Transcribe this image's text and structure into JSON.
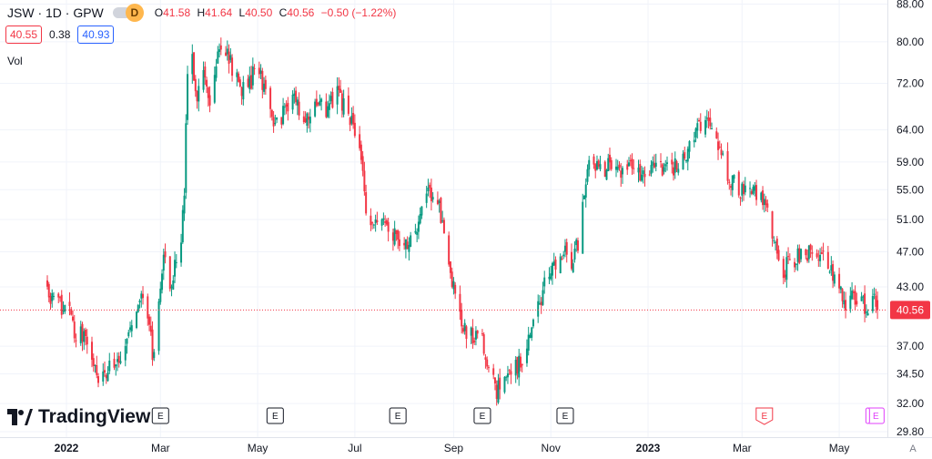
{
  "header": {
    "symbol": "JSW · 1D · GPW",
    "badge": "D",
    "o_label": "O",
    "o_value": "41.58",
    "h_label": "H",
    "h_value": "41.64",
    "l_label": "L",
    "l_value": "40.50",
    "c_label": "C",
    "c_value": "40.56",
    "change": "−0.50 (−1.22%)"
  },
  "quote": {
    "bid": "40.55",
    "spread": "0.38",
    "ask": "40.93"
  },
  "vol_label": "Vol",
  "brand": "TradingView",
  "colors": {
    "up": "#089981",
    "down": "#f23645",
    "grid": "#f0f3fa",
    "axis_text": "#131722",
    "earnings_future": "#f23645",
    "earnings_next": "#e040fb"
  },
  "chart_data": {
    "type": "candlestick",
    "title": "JSW · 1D · GPW",
    "log_scale": true,
    "grid": true,
    "y_ticks": [
      "88.00",
      "80.00",
      "72.00",
      "64.00",
      "59.00",
      "55.00",
      "51.00",
      "47.00",
      "43.00",
      "40.56",
      "37.00",
      "34.50",
      "32.00",
      "29.80"
    ],
    "x_ticks": [
      "2022",
      "Mar",
      "May",
      "Jul",
      "Sep",
      "Nov",
      "2023",
      "Mar",
      "May"
    ],
    "last_price": 40.56,
    "price_path": [
      [
        "2021-12-20",
        42.5
      ],
      [
        "2021-12-27",
        41.0
      ],
      [
        "2022-01-03",
        40.0
      ],
      [
        "2022-01-07",
        37.5
      ],
      [
        "2022-01-12",
        38.5
      ],
      [
        "2022-01-17",
        35.5
      ],
      [
        "2022-01-21",
        33.5
      ],
      [
        "2022-01-26",
        34.5
      ],
      [
        "2022-01-31",
        35.5
      ],
      [
        "2022-02-04",
        36.0
      ],
      [
        "2022-02-09",
        38.0
      ],
      [
        "2022-02-14",
        41.0
      ],
      [
        "2022-02-18",
        42.0
      ],
      [
        "2022-02-22",
        39.0
      ],
      [
        "2022-02-24",
        36.0
      ],
      [
        "2022-02-28",
        40.5
      ],
      [
        "2022-03-03",
        47.0
      ],
      [
        "2022-03-08",
        42.5
      ],
      [
        "2022-03-10",
        45.5
      ],
      [
        "2022-03-14",
        48.0
      ],
      [
        "2022-03-16",
        55.0
      ],
      [
        "2022-03-18",
        72.0
      ],
      [
        "2022-03-21",
        76.0
      ],
      [
        "2022-03-24",
        69.0
      ],
      [
        "2022-03-28",
        73.0
      ],
      [
        "2022-04-01",
        68.0
      ],
      [
        "2022-04-05",
        76.0
      ],
      [
        "2022-04-08",
        78.0
      ],
      [
        "2022-04-12",
        77.0
      ],
      [
        "2022-04-19",
        72.0
      ],
      [
        "2022-04-25",
        70.5
      ],
      [
        "2022-04-29",
        75.0
      ],
      [
        "2022-05-05",
        72.0
      ],
      [
        "2022-05-11",
        64.0
      ],
      [
        "2022-05-17",
        67.0
      ],
      [
        "2022-05-23",
        70.0
      ],
      [
        "2022-05-30",
        66.0
      ],
      [
        "2022-06-06",
        69.0
      ],
      [
        "2022-06-13",
        67.0
      ],
      [
        "2022-06-20",
        70.0
      ],
      [
        "2022-06-27",
        66.0
      ],
      [
        "2022-07-01",
        64.0
      ],
      [
        "2022-07-05",
        60.0
      ],
      [
        "2022-07-08",
        53.0
      ],
      [
        "2022-07-12",
        50.0
      ],
      [
        "2022-07-18",
        51.5
      ],
      [
        "2022-07-25",
        49.5
      ],
      [
        "2022-08-01",
        47.5
      ],
      [
        "2022-08-08",
        50.0
      ],
      [
        "2022-08-12",
        52.5
      ],
      [
        "2022-08-17",
        55.0
      ],
      [
        "2022-08-22",
        53.0
      ],
      [
        "2022-08-26",
        50.0
      ],
      [
        "2022-08-31",
        44.0
      ],
      [
        "2022-09-06",
        39.0
      ],
      [
        "2022-09-12",
        38.0
      ],
      [
        "2022-09-19",
        37.5
      ],
      [
        "2022-09-23",
        35.0
      ],
      [
        "2022-09-28",
        33.0
      ],
      [
        "2022-10-03",
        34.0
      ],
      [
        "2022-10-10",
        35.0
      ],
      [
        "2022-10-17",
        37.0
      ],
      [
        "2022-10-24",
        41.0
      ],
      [
        "2022-10-31",
        44.5
      ],
      [
        "2022-11-07",
        47.0
      ],
      [
        "2022-11-14",
        46.0
      ],
      [
        "2022-11-18",
        48.0
      ],
      [
        "2022-11-22",
        55.0
      ],
      [
        "2022-11-25",
        60.0
      ],
      [
        "2022-12-01",
        58.0
      ],
      [
        "2022-12-08",
        58.5
      ],
      [
        "2022-12-15",
        57.0
      ],
      [
        "2022-12-22",
        58.0
      ],
      [
        "2022-12-29",
        57.0
      ],
      [
        "2023-01-05",
        59.0
      ],
      [
        "2023-01-12",
        58.0
      ],
      [
        "2023-01-19",
        58.5
      ],
      [
        "2023-01-26",
        61.0
      ],
      [
        "2023-02-02",
        64.0
      ],
      [
        "2023-02-08",
        66.0
      ],
      [
        "2023-02-13",
        62.0
      ],
      [
        "2023-02-17",
        59.0
      ],
      [
        "2023-02-23",
        56.0
      ],
      [
        "2023-03-01",
        55.0
      ],
      [
        "2023-03-08",
        55.5
      ],
      [
        "2023-03-13",
        54.0
      ],
      [
        "2023-03-17",
        52.0
      ],
      [
        "2023-03-22",
        47.0
      ],
      [
        "2023-03-27",
        45.0
      ],
      [
        "2023-04-03",
        46.0
      ],
      [
        "2023-04-11",
        47.0
      ],
      [
        "2023-04-18",
        46.5
      ],
      [
        "2023-04-24",
        45.5
      ],
      [
        "2023-04-28",
        43.5
      ],
      [
        "2023-05-05",
        41.5
      ],
      [
        "2023-05-12",
        41.8
      ],
      [
        "2023-05-17",
        40.8
      ],
      [
        "2023-05-23",
        41.5
      ],
      [
        "2023-05-25",
        40.56
      ]
    ],
    "earnings_markers": [
      {
        "date": "2022-03-01",
        "label": "E"
      },
      {
        "date": "2022-05-12",
        "label": "E"
      },
      {
        "date": "2022-07-28",
        "label": "E"
      },
      {
        "date": "2022-09-19",
        "label": "E"
      },
      {
        "date": "2022-11-10",
        "label": "E"
      },
      {
        "date": "2023-03-15",
        "label": "E"
      },
      {
        "date": "2023-05-24",
        "label": "E"
      }
    ],
    "extra_axis_label": "A"
  }
}
